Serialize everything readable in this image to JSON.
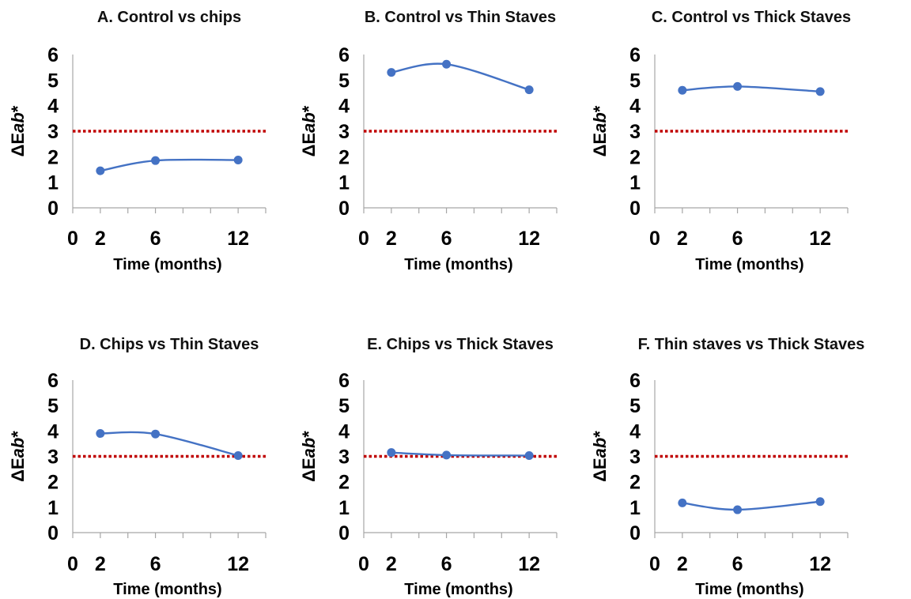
{
  "chart_data": [
    {
      "type": "line",
      "title": "A. Control vs chips",
      "xlabel": "Time (months)",
      "ylabel_prefix": "ΔE",
      "ylabel_italic": "ab",
      "ylabel_suffix": "*",
      "x_ticks": [
        "0",
        "2",
        "6",
        "12"
      ],
      "y_ticks": [
        "0",
        "1",
        "2",
        "3",
        "4",
        "5",
        "6"
      ],
      "xlim": [
        0,
        14
      ],
      "ylim": [
        0,
        6
      ],
      "threshold": 3,
      "x": [
        2,
        6,
        12
      ],
      "y": [
        1.45,
        1.85,
        1.87
      ]
    },
    {
      "type": "line",
      "title": "B. Control vs Thin Staves",
      "xlabel": "Time (months)",
      "ylabel_prefix": "ΔE",
      "ylabel_italic": "ab",
      "ylabel_suffix": "*",
      "x_ticks": [
        "0",
        "2",
        "6",
        "12"
      ],
      "y_ticks": [
        "0",
        "1",
        "2",
        "3",
        "4",
        "5",
        "6"
      ],
      "xlim": [
        0,
        14
      ],
      "ylim": [
        0,
        6
      ],
      "threshold": 3,
      "x": [
        2,
        6,
        12
      ],
      "y": [
        5.3,
        5.62,
        4.62
      ]
    },
    {
      "type": "line",
      "title": "C. Control vs Thick Staves",
      "xlabel": "Time (months)",
      "ylabel_prefix": "ΔE",
      "ylabel_italic": "ab",
      "ylabel_suffix": "*",
      "x_ticks": [
        "0",
        "2",
        "6",
        "12"
      ],
      "y_ticks": [
        "0",
        "1",
        "2",
        "3",
        "4",
        "5",
        "6"
      ],
      "xlim": [
        0,
        14
      ],
      "ylim": [
        0,
        6
      ],
      "threshold": 3,
      "x": [
        2,
        6,
        12
      ],
      "y": [
        4.6,
        4.75,
        4.55
      ]
    },
    {
      "type": "line",
      "title": "D. Chips vs Thin Staves",
      "xlabel": "Time (months)",
      "ylabel_prefix": "ΔE",
      "ylabel_italic": "ab",
      "ylabel_suffix": "*",
      "x_ticks": [
        "0",
        "2",
        "6",
        "12"
      ],
      "y_ticks": [
        "0",
        "1",
        "2",
        "3",
        "4",
        "5",
        "6"
      ],
      "xlim": [
        0,
        14
      ],
      "ylim": [
        0,
        6
      ],
      "threshold": 3,
      "x": [
        2,
        6,
        12
      ],
      "y": [
        3.9,
        3.88,
        3.03
      ]
    },
    {
      "type": "line",
      "title": "E. Chips vs Thick Staves",
      "xlabel": "Time (months)",
      "ylabel_prefix": "ΔE",
      "ylabel_italic": "ab",
      "ylabel_suffix": "*",
      "x_ticks": [
        "0",
        "2",
        "6",
        "12"
      ],
      "y_ticks": [
        "0",
        "1",
        "2",
        "3",
        "4",
        "5",
        "6"
      ],
      "xlim": [
        0,
        14
      ],
      "ylim": [
        0,
        6
      ],
      "threshold": 3,
      "x": [
        2,
        6,
        12
      ],
      "y": [
        3.15,
        3.05,
        3.03
      ]
    },
    {
      "type": "line",
      "title": "F. Thin staves vs Thick Staves",
      "xlabel": "Time (months)",
      "ylabel_prefix": "ΔE",
      "ylabel_italic": "ab",
      "ylabel_suffix": "*",
      "x_ticks": [
        "0",
        "2",
        "6",
        "12"
      ],
      "y_ticks": [
        "0",
        "1",
        "2",
        "3",
        "4",
        "5",
        "6"
      ],
      "xlim": [
        0,
        14
      ],
      "ylim": [
        0,
        6
      ],
      "threshold": 3,
      "x": [
        2,
        6,
        12
      ],
      "y": [
        1.17,
        0.9,
        1.22
      ]
    }
  ],
  "colors": {
    "series": "#4472C4",
    "threshold": "#C00000",
    "axis": "#A6A6A6",
    "text": "#000000"
  }
}
